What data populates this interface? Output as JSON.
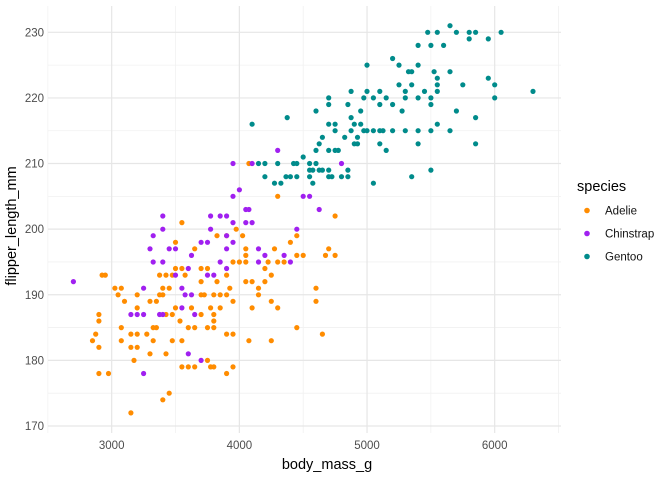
{
  "axes": {
    "x_title": "body_mass_g",
    "y_title": "flipper_length_mm",
    "x_ticks": [
      3000,
      4000,
      5000,
      6000
    ],
    "x_minor": [
      2500,
      3500,
      4500,
      5500,
      6500
    ],
    "y_ticks": [
      170,
      180,
      190,
      200,
      210,
      220,
      230
    ],
    "y_minor": [
      175,
      185,
      195,
      205,
      215,
      225
    ]
  },
  "legend": {
    "title": "species",
    "items": [
      {
        "label": "Adelie",
        "color": "#ff8c00"
      },
      {
        "label": "Chinstrap",
        "color": "#a020f0"
      },
      {
        "label": "Gentoo",
        "color": "#008b8b"
      }
    ]
  },
  "colors": {
    "adelie": "#ff8c00",
    "chinstrap": "#a020f0",
    "gentoo": "#008b8b",
    "grid_major": "#e6e6e6",
    "grid_minor": "#f1f1f1",
    "axis_text": "#4d4d4d",
    "axis_title": "#000000"
  },
  "chart_data": {
    "type": "scatter",
    "title": "",
    "xlabel": "body_mass_g",
    "ylabel": "flipper_length_mm",
    "xlim": [
      2450,
      6550
    ],
    "ylim": [
      168,
      234
    ],
    "grid": true,
    "legend_position": "right",
    "series": [
      {
        "name": "Adelie",
        "color": "#ff8c00",
        "points": [
          [
            2850,
            183
          ],
          [
            2875,
            184
          ],
          [
            2900,
            178
          ],
          [
            2900,
            182
          ],
          [
            2900,
            186
          ],
          [
            2900,
            187
          ],
          [
            2925,
            193
          ],
          [
            2950,
            193
          ],
          [
            2975,
            178
          ],
          [
            3025,
            191
          ],
          [
            3050,
            190
          ],
          [
            3075,
            183
          ],
          [
            3075,
            185
          ],
          [
            3075,
            191
          ],
          [
            3100,
            189
          ],
          [
            3150,
            172
          ],
          [
            3150,
            182
          ],
          [
            3150,
            184
          ],
          [
            3175,
            180
          ],
          [
            3200,
            182
          ],
          [
            3200,
            184
          ],
          [
            3200,
            188
          ],
          [
            3200,
            190
          ],
          [
            3275,
            184
          ],
          [
            3300,
            181
          ],
          [
            3300,
            189
          ],
          [
            3325,
            183
          ],
          [
            3325,
            185
          ],
          [
            3350,
            185
          ],
          [
            3350,
            189
          ],
          [
            3375,
            190
          ],
          [
            3375,
            193
          ],
          [
            3400,
            174
          ],
          [
            3400,
            190
          ],
          [
            3400,
            191
          ],
          [
            3425,
            181
          ],
          [
            3425,
            187
          ],
          [
            3425,
            193
          ],
          [
            3450,
            175
          ],
          [
            3450,
            191
          ],
          [
            3475,
            183
          ],
          [
            3475,
            187
          ],
          [
            3475,
            193
          ],
          [
            3500,
            188
          ],
          [
            3500,
            194
          ],
          [
            3500,
            198
          ],
          [
            3535,
            186
          ],
          [
            3550,
            179
          ],
          [
            3550,
            183
          ],
          [
            3550,
            194
          ],
          [
            3550,
            201
          ],
          [
            3575,
            193
          ],
          [
            3600,
            179
          ],
          [
            3600,
            185
          ],
          [
            3625,
            188
          ],
          [
            3650,
            179
          ],
          [
            3650,
            185
          ],
          [
            3650,
            197
          ],
          [
            3700,
            187
          ],
          [
            3700,
            190
          ],
          [
            3700,
            192
          ],
          [
            3700,
            194
          ],
          [
            3725,
            190
          ],
          [
            3750,
            180
          ],
          [
            3750,
            185
          ],
          [
            3750,
            194
          ],
          [
            3775,
            179
          ],
          [
            3775,
            188
          ],
          [
            3800,
            179
          ],
          [
            3800,
            185
          ],
          [
            3800,
            186
          ],
          [
            3800,
            187
          ],
          [
            3800,
            190
          ],
          [
            3825,
            192
          ],
          [
            3825,
            199
          ],
          [
            3850,
            188
          ],
          [
            3850,
            190
          ],
          [
            3900,
            178
          ],
          [
            3900,
            184
          ],
          [
            3900,
            190
          ],
          [
            3900,
            193
          ],
          [
            3900,
            199
          ],
          [
            3925,
            191
          ],
          [
            3950,
            179
          ],
          [
            3950,
            184
          ],
          [
            3950,
            189
          ],
          [
            3950,
            195
          ],
          [
            3975,
            200
          ],
          [
            4000,
            195
          ],
          [
            4025,
            199
          ],
          [
            4050,
            192
          ],
          [
            4050,
            195
          ],
          [
            4050,
            196
          ],
          [
            4050,
            197
          ],
          [
            4075,
            183
          ],
          [
            4075,
            210
          ],
          [
            4100,
            188
          ],
          [
            4100,
            192
          ],
          [
            4150,
            190
          ],
          [
            4150,
            191
          ],
          [
            4200,
            192
          ],
          [
            4200,
            194
          ],
          [
            4225,
            195
          ],
          [
            4250,
            183
          ],
          [
            4250,
            189
          ],
          [
            4250,
            193
          ],
          [
            4275,
            197
          ],
          [
            4300,
            188
          ],
          [
            4300,
            195
          ],
          [
            4300,
            205
          ],
          [
            4350,
            195
          ],
          [
            4400,
            198
          ],
          [
            4450,
            185
          ],
          [
            4450,
            196
          ],
          [
            4450,
            199
          ],
          [
            4500,
            196
          ],
          [
            4600,
            189
          ],
          [
            4600,
            191
          ],
          [
            4650,
            184
          ],
          [
            4675,
            196
          ],
          [
            4700,
            197
          ],
          [
            4750,
            196
          ],
          [
            4750,
            202
          ]
        ]
      },
      {
        "name": "Chinstrap",
        "color": "#a020f0",
        "points": [
          [
            2700,
            192
          ],
          [
            3150,
            187
          ],
          [
            3200,
            187
          ],
          [
            3250,
            178
          ],
          [
            3250,
            187
          ],
          [
            3250,
            191
          ],
          [
            3300,
            197
          ],
          [
            3325,
            195
          ],
          [
            3325,
            199
          ],
          [
            3375,
            187
          ],
          [
            3400,
            187
          ],
          [
            3400,
            195
          ],
          [
            3400,
            200
          ],
          [
            3400,
            202
          ],
          [
            3450,
            197
          ],
          [
            3500,
            193
          ],
          [
            3500,
            197
          ],
          [
            3550,
            188
          ],
          [
            3550,
            191
          ],
          [
            3575,
            190
          ],
          [
            3600,
            181
          ],
          [
            3600,
            194
          ],
          [
            3625,
            190
          ],
          [
            3625,
            196
          ],
          [
            3650,
            187
          ],
          [
            3700,
            180
          ],
          [
            3700,
            198
          ],
          [
            3750,
            193
          ],
          [
            3750,
            198
          ],
          [
            3775,
            200
          ],
          [
            3775,
            202
          ],
          [
            3800,
            193
          ],
          [
            3850,
            195
          ],
          [
            3850,
            202
          ],
          [
            3900,
            194
          ],
          [
            3900,
            197
          ],
          [
            3900,
            199
          ],
          [
            3900,
            202
          ],
          [
            3950,
            198
          ],
          [
            3950,
            201
          ],
          [
            3950,
            205
          ],
          [
            3950,
            210
          ],
          [
            4000,
            206
          ],
          [
            4050,
            201
          ],
          [
            4050,
            203
          ],
          [
            4075,
            203
          ],
          [
            4100,
            201
          ],
          [
            4100,
            210
          ],
          [
            4150,
            195
          ],
          [
            4150,
            197
          ],
          [
            4200,
            196
          ],
          [
            4300,
            212
          ],
          [
            4350,
            196
          ],
          [
            4400,
            195
          ],
          [
            4450,
            200
          ],
          [
            4500,
            205
          ],
          [
            4550,
            205
          ],
          [
            4625,
            203
          ],
          [
            4800,
            210
          ]
        ]
      },
      {
        "name": "Gentoo",
        "color": "#008b8b",
        "points": [
          [
            4100,
            216
          ],
          [
            4150,
            210
          ],
          [
            4200,
            208
          ],
          [
            4200,
            210
          ],
          [
            4275,
            207
          ],
          [
            4300,
            210
          ],
          [
            4325,
            207
          ],
          [
            4365,
            208
          ],
          [
            4375,
            217
          ],
          [
            4400,
            208
          ],
          [
            4425,
            210
          ],
          [
            4450,
            208
          ],
          [
            4450,
            210
          ],
          [
            4500,
            211
          ],
          [
            4550,
            208
          ],
          [
            4550,
            209
          ],
          [
            4550,
            210
          ],
          [
            4575,
            207
          ],
          [
            4575,
            209
          ],
          [
            4600,
            210
          ],
          [
            4600,
            212
          ],
          [
            4600,
            218
          ],
          [
            4625,
            209
          ],
          [
            4625,
            213
          ],
          [
            4650,
            209
          ],
          [
            4650,
            214
          ],
          [
            4700,
            208
          ],
          [
            4700,
            209
          ],
          [
            4700,
            212
          ],
          [
            4700,
            216
          ],
          [
            4700,
            219
          ],
          [
            4700,
            220
          ],
          [
            4725,
            208
          ],
          [
            4750,
            212
          ],
          [
            4750,
            215
          ],
          [
            4750,
            216
          ],
          [
            4775,
            212
          ],
          [
            4800,
            208
          ],
          [
            4825,
            214
          ],
          [
            4850,
            208
          ],
          [
            4850,
            209
          ],
          [
            4850,
            219
          ],
          [
            4875,
            215
          ],
          [
            4875,
            217
          ],
          [
            4875,
            221
          ],
          [
            4900,
            213
          ],
          [
            4900,
            216
          ],
          [
            4925,
            213
          ],
          [
            4925,
            214
          ],
          [
            4950,
            216
          ],
          [
            4950,
            218
          ],
          [
            4975,
            215
          ],
          [
            4975,
            220
          ],
          [
            5000,
            215
          ],
          [
            5000,
            221
          ],
          [
            5000,
            225
          ],
          [
            5050,
            207
          ],
          [
            5050,
            215
          ],
          [
            5050,
            220
          ],
          [
            5100,
            213
          ],
          [
            5100,
            215
          ],
          [
            5100,
            219
          ],
          [
            5100,
            221
          ],
          [
            5125,
            215
          ],
          [
            5150,
            212
          ],
          [
            5150,
            220
          ],
          [
            5200,
            215
          ],
          [
            5200,
            219
          ],
          [
            5200,
            226
          ],
          [
            5250,
            222
          ],
          [
            5250,
            225
          ],
          [
            5275,
            218
          ],
          [
            5300,
            215
          ],
          [
            5300,
            220
          ],
          [
            5300,
            221
          ],
          [
            5325,
            224
          ],
          [
            5350,
            208
          ],
          [
            5350,
            222
          ],
          [
            5350,
            224
          ],
          [
            5400,
            213
          ],
          [
            5400,
            215
          ],
          [
            5400,
            220
          ],
          [
            5400,
            225
          ],
          [
            5400,
            228
          ],
          [
            5450,
            221
          ],
          [
            5475,
            230
          ],
          [
            5500,
            209
          ],
          [
            5500,
            215
          ],
          [
            5500,
            219
          ],
          [
            5500,
            220
          ],
          [
            5500,
            228
          ],
          [
            5525,
            224
          ],
          [
            5550,
            216
          ],
          [
            5550,
            221
          ],
          [
            5550,
            222
          ],
          [
            5550,
            223
          ],
          [
            5550,
            230
          ],
          [
            5600,
            228
          ],
          [
            5650,
            215
          ],
          [
            5650,
            224
          ],
          [
            5650,
            231
          ],
          [
            5700,
            218
          ],
          [
            5700,
            230
          ],
          [
            5750,
            222
          ],
          [
            5800,
            229
          ],
          [
            5800,
            230
          ],
          [
            5850,
            213
          ],
          [
            5850,
            217
          ],
          [
            5850,
            230
          ],
          [
            5950,
            223
          ],
          [
            5950,
            229
          ],
          [
            6000,
            220
          ],
          [
            6000,
            222
          ],
          [
            6050,
            230
          ],
          [
            6300,
            221
          ]
        ]
      }
    ]
  }
}
